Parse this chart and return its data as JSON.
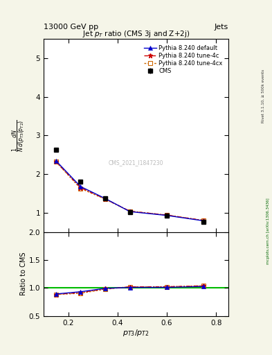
{
  "header_left": "13000 GeV pp",
  "header_right": "Jets",
  "title": "Jet $p_T$ ratio (CMS 3j and Z+2j)",
  "xlabel": "$p_{T3}/p_{T2}$",
  "ylabel_ratio": "Ratio to CMS",
  "watermark": "CMS_2021_I1847230",
  "right_label": "mcplots.cern.ch [arXiv:1306.3436]",
  "rivet_label": "Rivet 3.1.10, ≥ 500k events",
  "cms_x": [
    0.15,
    0.25,
    0.35,
    0.45,
    0.6,
    0.75
  ],
  "cms_y": [
    2.63,
    1.8,
    1.38,
    1.02,
    0.92,
    0.77
  ],
  "cms_yerr": [
    0.05,
    0.03,
    0.02,
    0.02,
    0.02,
    0.02
  ],
  "pythia_default_x": [
    0.15,
    0.25,
    0.35,
    0.45,
    0.6,
    0.75
  ],
  "pythia_default_y": [
    2.35,
    1.68,
    1.37,
    1.03,
    0.93,
    0.79
  ],
  "pythia_default_color": "#0000cc",
  "pythia_4c_x": [
    0.15,
    0.25,
    0.35,
    0.45,
    0.6,
    0.75
  ],
  "pythia_4c_y": [
    2.33,
    1.65,
    1.36,
    1.04,
    0.94,
    0.8
  ],
  "pythia_4c_color": "#cc0000",
  "pythia_4cx_x": [
    0.15,
    0.25,
    0.35,
    0.45,
    0.6,
    0.75
  ],
  "pythia_4cx_y": [
    2.32,
    1.63,
    1.35,
    1.04,
    0.94,
    0.8
  ],
  "pythia_4cx_color": "#cc6600",
  "ratio_default_y": [
    0.893,
    0.933,
    0.993,
    1.01,
    1.011,
    1.026
  ],
  "ratio_4c_y": [
    0.886,
    0.917,
    0.986,
    1.02,
    1.022,
    1.039
  ],
  "ratio_4cx_y": [
    0.882,
    0.906,
    0.978,
    1.02,
    1.022,
    1.039
  ],
  "main_ylim": [
    0.5,
    5.5
  ],
  "main_yticks": [
    1,
    2,
    3,
    4,
    5
  ],
  "ratio_ylim": [
    0.5,
    2.0
  ],
  "ratio_yticks": [
    0.5,
    1.0,
    1.5,
    2.0
  ],
  "xlim": [
    0.1,
    0.85
  ],
  "xticks": [
    0.2,
    0.4,
    0.6,
    0.8
  ],
  "bg_color": "#f5f5e8",
  "plot_bg": "#ffffff"
}
